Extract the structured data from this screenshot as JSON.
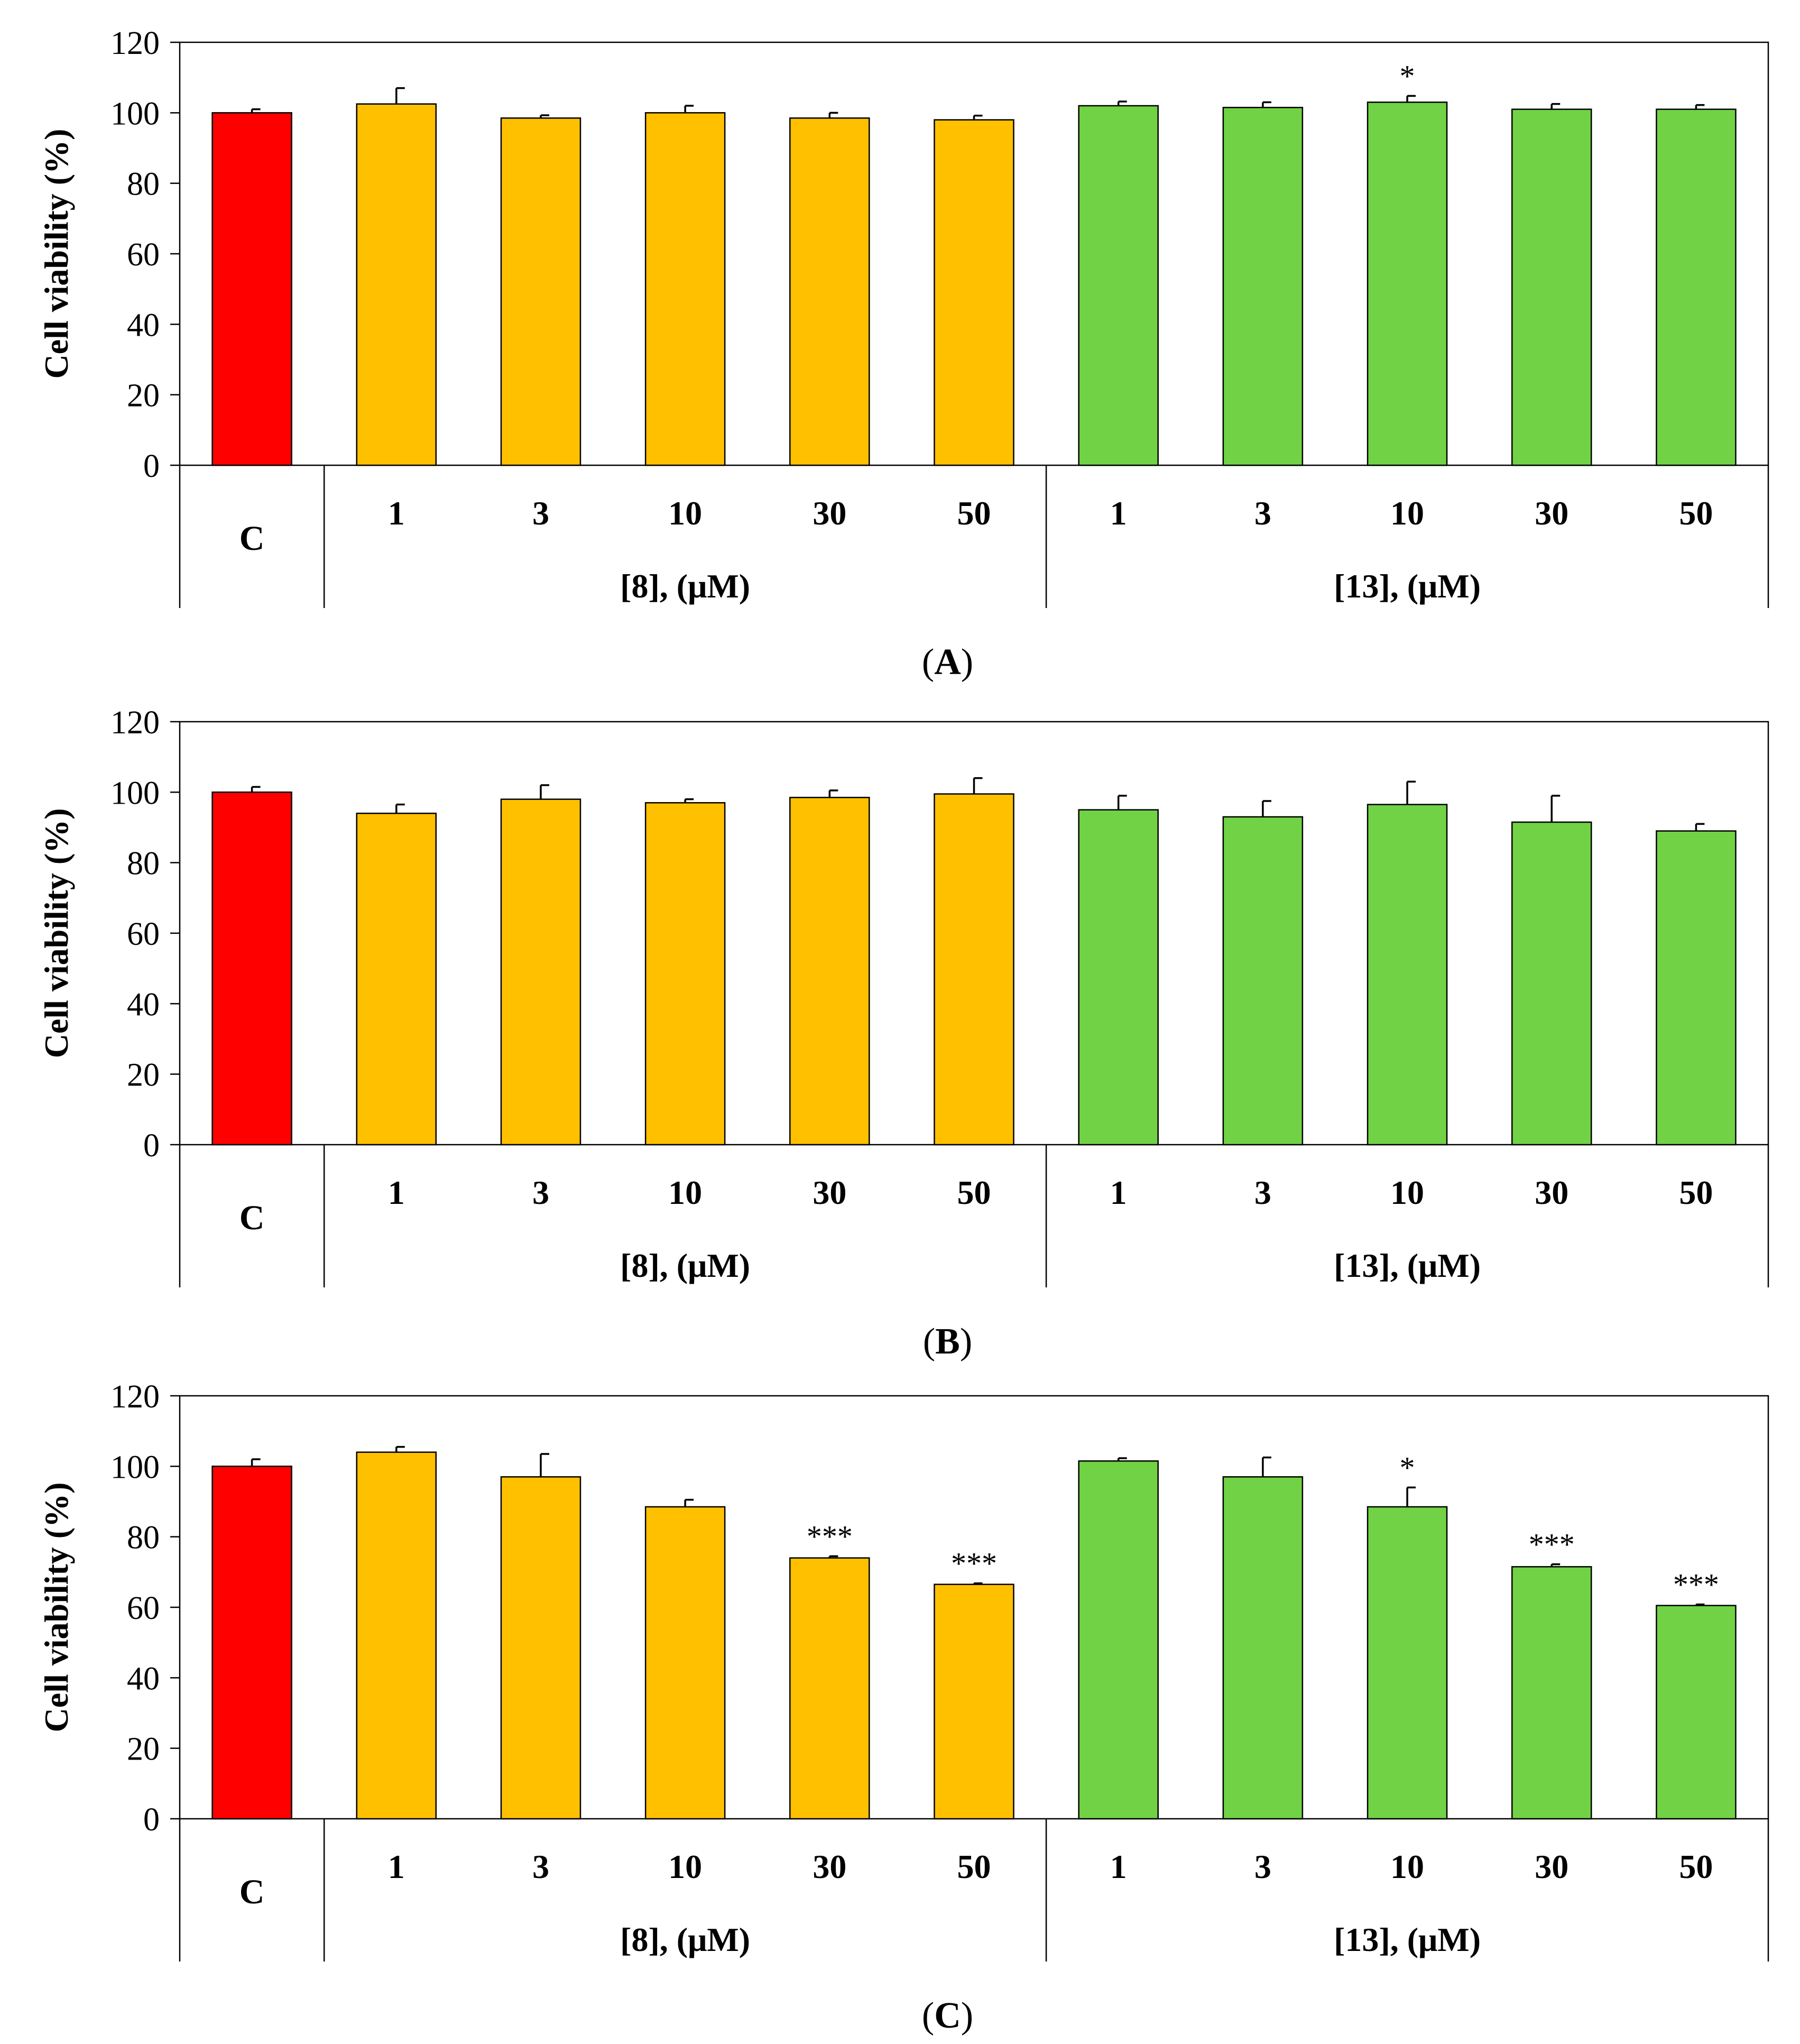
{
  "figure": {
    "colors": {
      "control": "#ff0000",
      "compound8": "#ffc000",
      "compound13": "#70d244",
      "axis": "#000000"
    }
  },
  "chart_data": [
    {
      "type": "bar",
      "panel_label": "A",
      "ylabel": "Cell viability (%)",
      "ylim": [
        0,
        120
      ],
      "yticks": [
        0,
        20,
        40,
        60,
        80,
        100,
        120
      ],
      "categories": [
        "C",
        "1",
        "3",
        "10",
        "30",
        "50",
        "1",
        "3",
        "10",
        "30",
        "50"
      ],
      "groups": [
        {
          "label": "C",
          "span": [
            0,
            0
          ]
        },
        {
          "label": "[8], (μM)",
          "span": [
            1,
            5
          ]
        },
        {
          "label": "[13], (μM)",
          "span": [
            6,
            10
          ]
        }
      ],
      "series": [
        {
          "name": "Cell viability",
          "values": [
            100,
            102.5,
            98.5,
            100,
            98.5,
            98,
            102,
            101.5,
            103,
            101,
            101
          ],
          "errors": [
            1,
            4.5,
            0.8,
            2,
            1.5,
            1.2,
            1.2,
            1.5,
            1.8,
            1.5,
            1.2
          ],
          "significance": [
            "",
            "",
            "",
            "",
            "",
            "",
            "",
            "",
            "*",
            "",
            ""
          ]
        }
      ]
    },
    {
      "type": "bar",
      "panel_label": "B",
      "ylabel": "Cell viability (%)",
      "ylim": [
        0,
        120
      ],
      "yticks": [
        0,
        20,
        40,
        60,
        80,
        100,
        120
      ],
      "categories": [
        "C",
        "1",
        "3",
        "10",
        "30",
        "50",
        "1",
        "3",
        "10",
        "30",
        "50"
      ],
      "groups": [
        {
          "label": "C",
          "span": [
            0,
            0
          ]
        },
        {
          "label": "[8], (μM)",
          "span": [
            1,
            5
          ]
        },
        {
          "label": "[13], (μM)",
          "span": [
            6,
            10
          ]
        }
      ],
      "series": [
        {
          "name": "Cell viability",
          "values": [
            100,
            94,
            98,
            97,
            98.5,
            99.5,
            95,
            93,
            96.5,
            91.5,
            89
          ],
          "errors": [
            1.5,
            2.5,
            4,
            1,
            2,
            4.5,
            4,
            4.5,
            6.5,
            7.5,
            2
          ],
          "significance": [
            "",
            "",
            "",
            "",
            "",
            "",
            "",
            "",
            "",
            "",
            ""
          ]
        }
      ]
    },
    {
      "type": "bar",
      "panel_label": "C",
      "ylabel": "Cell viability (%)",
      "ylim": [
        0,
        120
      ],
      "yticks": [
        0,
        20,
        40,
        60,
        80,
        100,
        120
      ],
      "categories": [
        "C",
        "1",
        "3",
        "10",
        "30",
        "50",
        "1",
        "3",
        "10",
        "30",
        "50"
      ],
      "groups": [
        {
          "label": "C",
          "span": [
            0,
            0
          ]
        },
        {
          "label": "[8], (μM)",
          "span": [
            1,
            5
          ]
        },
        {
          "label": "[13], (μM)",
          "span": [
            6,
            10
          ]
        }
      ],
      "series": [
        {
          "name": "Cell viability",
          "values": [
            100,
            104,
            97,
            88.5,
            74,
            66.5,
            101.5,
            97,
            88.5,
            71.5,
            60.5
          ],
          "errors": [
            2,
            1.5,
            6.5,
            2,
            0.5,
            0.3,
            0.8,
            5.5,
            5.5,
            0.7,
            0.3
          ],
          "significance": [
            "",
            "",
            "",
            "",
            "***",
            "***",
            "",
            "",
            "*",
            "***",
            "***"
          ]
        }
      ]
    }
  ]
}
